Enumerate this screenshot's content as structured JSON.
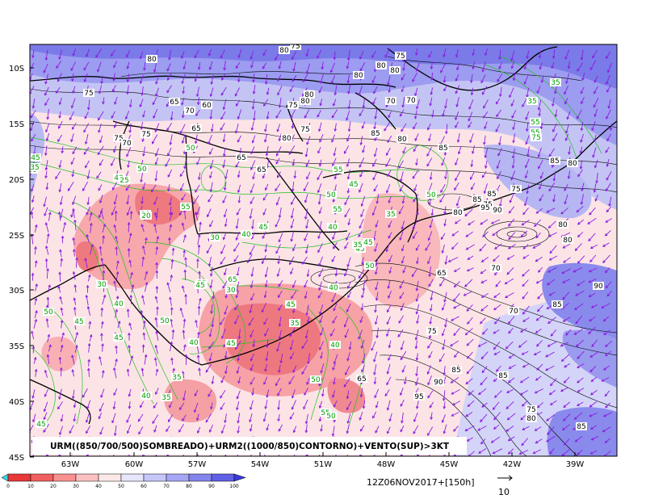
{
  "map": {
    "caption": "URM((850/700/500)SOMBREADO)+URM2((1000/850)CONTORNO)+VENTO(SUP)>3KT",
    "timestamp": "12Z06NOV2017+[150h]",
    "vector_reference": "10",
    "lat_labels": [
      "10S",
      "15S",
      "20S",
      "25S",
      "30S",
      "35S",
      "40S",
      "45S"
    ],
    "lon_labels": [
      "63W",
      "60W",
      "57W",
      "54W",
      "51W",
      "48W",
      "45W",
      "42W",
      "39W"
    ],
    "colorbar": {
      "labels": [
        "0",
        "10",
        "20",
        "30",
        "40",
        "50",
        "60",
        "70",
        "80",
        "90",
        "100"
      ],
      "colors": [
        "#3ad8e8",
        "#e83838",
        "#f06060",
        "#f89090",
        "#fcc0c0",
        "#fce8e8",
        "#e6e6fc",
        "#c6c6f8",
        "#a6a6f4",
        "#8484ee",
        "#6060e6",
        "#3a3ade"
      ]
    },
    "black_contour_labels": [
      "80",
      "75",
      "65",
      "70",
      "60",
      "75",
      "80",
      "80",
      "80",
      "75",
      "80",
      "80",
      "80",
      "75",
      "70",
      "70",
      "75",
      "65",
      "75",
      "70",
      "65",
      "65",
      "75",
      "80",
      "85",
      "80",
      "85",
      "85",
      "80",
      "85",
      "75",
      "95",
      "90",
      "80",
      "80",
      "90",
      "85",
      "70",
      "65",
      "70",
      "75",
      "85",
      "85",
      "90",
      "95",
      "75",
      "80",
      "65",
      "85",
      "80",
      "85",
      "75"
    ],
    "green_contour_labels": [
      "35",
      "35",
      "55",
      "55",
      "75",
      "50",
      "45",
      "30",
      "35",
      "20",
      "40",
      "50",
      "25",
      "45",
      "55",
      "35",
      "50",
      "20",
      "30",
      "40",
      "45",
      "65",
      "55",
      "45",
      "30",
      "40",
      "50",
      "45",
      "45",
      "50",
      "30",
      "40",
      "45",
      "40",
      "45",
      "35",
      "40",
      "50",
      "35",
      "40",
      "35",
      "45",
      "55",
      "50",
      "45",
      "35",
      "40",
      "50",
      "50",
      "45",
      "55",
      "55"
    ]
  }
}
